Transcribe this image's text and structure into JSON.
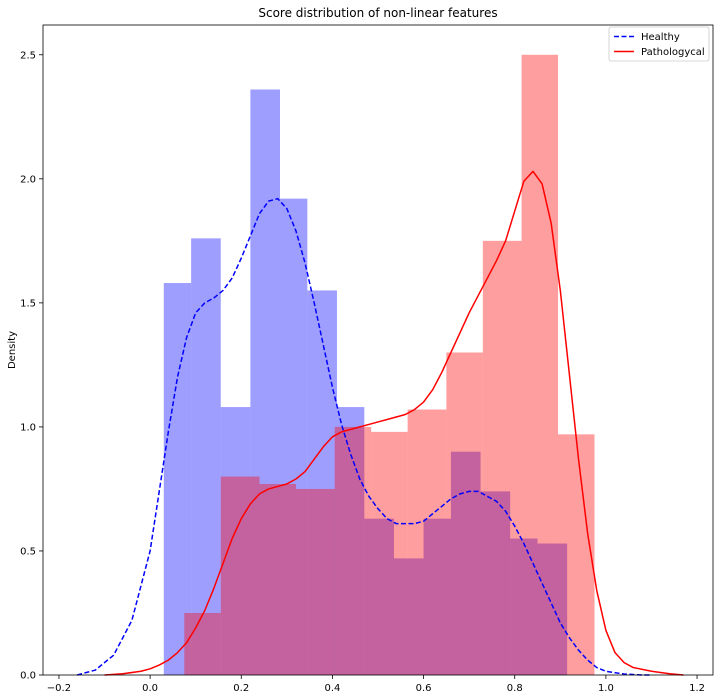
{
  "chart_data": {
    "type": "histogram+kde",
    "title": "Score distribution of non-linear features",
    "xlabel": "",
    "ylabel": "Density",
    "xlim": [
      -0.235,
      1.235
    ],
    "ylim": [
      0,
      2.62
    ],
    "xticks": [
      -0.2,
      0.0,
      0.2,
      0.4,
      0.6,
      0.8,
      1.0,
      1.2
    ],
    "xtick_labels": [
      "−0.2",
      "0.0",
      "0.2",
      "0.4",
      "0.6",
      "0.8",
      "1.0",
      "1.2"
    ],
    "yticks": [
      0.0,
      0.5,
      1.0,
      1.5,
      2.0,
      2.5
    ],
    "ytick_labels": [
      "0.0",
      "0.5",
      "1.0",
      "1.5",
      "2.0",
      "2.5"
    ],
    "grid": false,
    "legend_position": "top-right",
    "histograms": [
      {
        "name": "Healthy",
        "color": "#0000ff",
        "alpha": 0.38,
        "bins": [
          {
            "x0": 0.03,
            "x1": 0.09,
            "density": 1.58
          },
          {
            "x0": 0.09,
            "x1": 0.155,
            "density": 1.76
          },
          {
            "x0": 0.155,
            "x1": 0.22,
            "density": 1.08
          },
          {
            "x0": 0.22,
            "x1": 0.285,
            "density": 2.36
          },
          {
            "x0": 0.285,
            "x1": 0.345,
            "density": 1.92
          },
          {
            "x0": 0.345,
            "x1": 0.41,
            "density": 1.55
          },
          {
            "x0": 0.41,
            "x1": 0.47,
            "density": 1.08
          },
          {
            "x0": 0.47,
            "x1": 0.535,
            "density": 0.63
          },
          {
            "x0": 0.535,
            "x1": 0.6,
            "density": 0.47
          },
          {
            "x0": 0.6,
            "x1": 0.66,
            "density": 0.63
          },
          {
            "x0": 0.66,
            "x1": 0.725,
            "density": 0.9
          },
          {
            "x0": 0.725,
            "x1": 0.79,
            "density": 0.74
          },
          {
            "x0": 0.79,
            "x1": 0.85,
            "density": 0.55
          },
          {
            "x0": 0.85,
            "x1": 0.915,
            "density": 0.53
          }
        ]
      },
      {
        "name": "Pathologycal",
        "color": "#ff0000",
        "alpha": 0.38,
        "bins": [
          {
            "x0": 0.075,
            "x1": 0.155,
            "density": 0.25
          },
          {
            "x0": 0.155,
            "x1": 0.24,
            "density": 0.8
          },
          {
            "x0": 0.24,
            "x1": 0.32,
            "density": 0.77
          },
          {
            "x0": 0.32,
            "x1": 0.405,
            "density": 0.75
          },
          {
            "x0": 0.405,
            "x1": 0.485,
            "density": 1.0
          },
          {
            "x0": 0.485,
            "x1": 0.565,
            "density": 0.98
          },
          {
            "x0": 0.565,
            "x1": 0.65,
            "density": 1.07
          },
          {
            "x0": 0.65,
            "x1": 0.73,
            "density": 1.3
          },
          {
            "x0": 0.73,
            "x1": 0.815,
            "density": 1.75
          },
          {
            "x0": 0.815,
            "x1": 0.895,
            "density": 2.5
          },
          {
            "x0": 0.895,
            "x1": 0.975,
            "density": 0.97
          }
        ]
      }
    ],
    "series": [
      {
        "name": "Healthy",
        "style": "dashed",
        "color": "#0000ff",
        "x": [
          -0.16,
          -0.12,
          -0.08,
          -0.04,
          0.0,
          0.02,
          0.04,
          0.06,
          0.08,
          0.1,
          0.12,
          0.14,
          0.16,
          0.18,
          0.2,
          0.22,
          0.24,
          0.26,
          0.28,
          0.3,
          0.32,
          0.34,
          0.36,
          0.38,
          0.4,
          0.42,
          0.44,
          0.46,
          0.48,
          0.5,
          0.52,
          0.54,
          0.56,
          0.58,
          0.6,
          0.62,
          0.64,
          0.66,
          0.68,
          0.7,
          0.72,
          0.74,
          0.76,
          0.78,
          0.8,
          0.82,
          0.84,
          0.86,
          0.88,
          0.9,
          0.92,
          0.94,
          0.96,
          0.98,
          1.0,
          1.04,
          1.08,
          1.1
        ],
        "y": [
          0.0,
          0.02,
          0.08,
          0.22,
          0.5,
          0.74,
          0.98,
          1.2,
          1.36,
          1.46,
          1.5,
          1.52,
          1.55,
          1.6,
          1.68,
          1.77,
          1.86,
          1.91,
          1.92,
          1.88,
          1.79,
          1.66,
          1.5,
          1.33,
          1.16,
          1.01,
          0.89,
          0.79,
          0.72,
          0.67,
          0.63,
          0.61,
          0.61,
          0.61,
          0.62,
          0.65,
          0.68,
          0.71,
          0.73,
          0.74,
          0.74,
          0.72,
          0.7,
          0.66,
          0.6,
          0.53,
          0.45,
          0.37,
          0.29,
          0.21,
          0.15,
          0.1,
          0.06,
          0.03,
          0.015,
          0.004,
          0.0,
          0.0
        ]
      },
      {
        "name": "Pathologycal",
        "style": "solid",
        "color": "#ff0000",
        "x": [
          -0.1,
          -0.06,
          -0.02,
          0.0,
          0.02,
          0.04,
          0.06,
          0.08,
          0.1,
          0.12,
          0.14,
          0.16,
          0.18,
          0.2,
          0.22,
          0.24,
          0.26,
          0.28,
          0.3,
          0.32,
          0.34,
          0.36,
          0.38,
          0.4,
          0.42,
          0.44,
          0.46,
          0.48,
          0.5,
          0.52,
          0.54,
          0.56,
          0.58,
          0.6,
          0.62,
          0.64,
          0.66,
          0.68,
          0.7,
          0.72,
          0.74,
          0.76,
          0.78,
          0.8,
          0.82,
          0.84,
          0.86,
          0.88,
          0.9,
          0.92,
          0.94,
          0.96,
          0.98,
          1.0,
          1.02,
          1.04,
          1.06,
          1.1,
          1.14,
          1.17
        ],
        "y": [
          0.0,
          0.005,
          0.015,
          0.025,
          0.04,
          0.06,
          0.09,
          0.13,
          0.19,
          0.26,
          0.35,
          0.45,
          0.55,
          0.63,
          0.69,
          0.73,
          0.75,
          0.76,
          0.77,
          0.79,
          0.82,
          0.87,
          0.92,
          0.96,
          0.98,
          0.99,
          1.0,
          1.01,
          1.02,
          1.03,
          1.04,
          1.05,
          1.07,
          1.1,
          1.15,
          1.22,
          1.3,
          1.38,
          1.46,
          1.53,
          1.6,
          1.67,
          1.75,
          1.87,
          1.99,
          2.03,
          1.98,
          1.82,
          1.55,
          1.21,
          0.87,
          0.57,
          0.34,
          0.18,
          0.09,
          0.05,
          0.03,
          0.015,
          0.005,
          0.0
        ]
      }
    ],
    "legend": [
      {
        "label": "Healthy",
        "style": "dashed",
        "color": "#0000ff"
      },
      {
        "label": "Pathologycal",
        "style": "solid",
        "color": "#ff0000"
      }
    ]
  }
}
